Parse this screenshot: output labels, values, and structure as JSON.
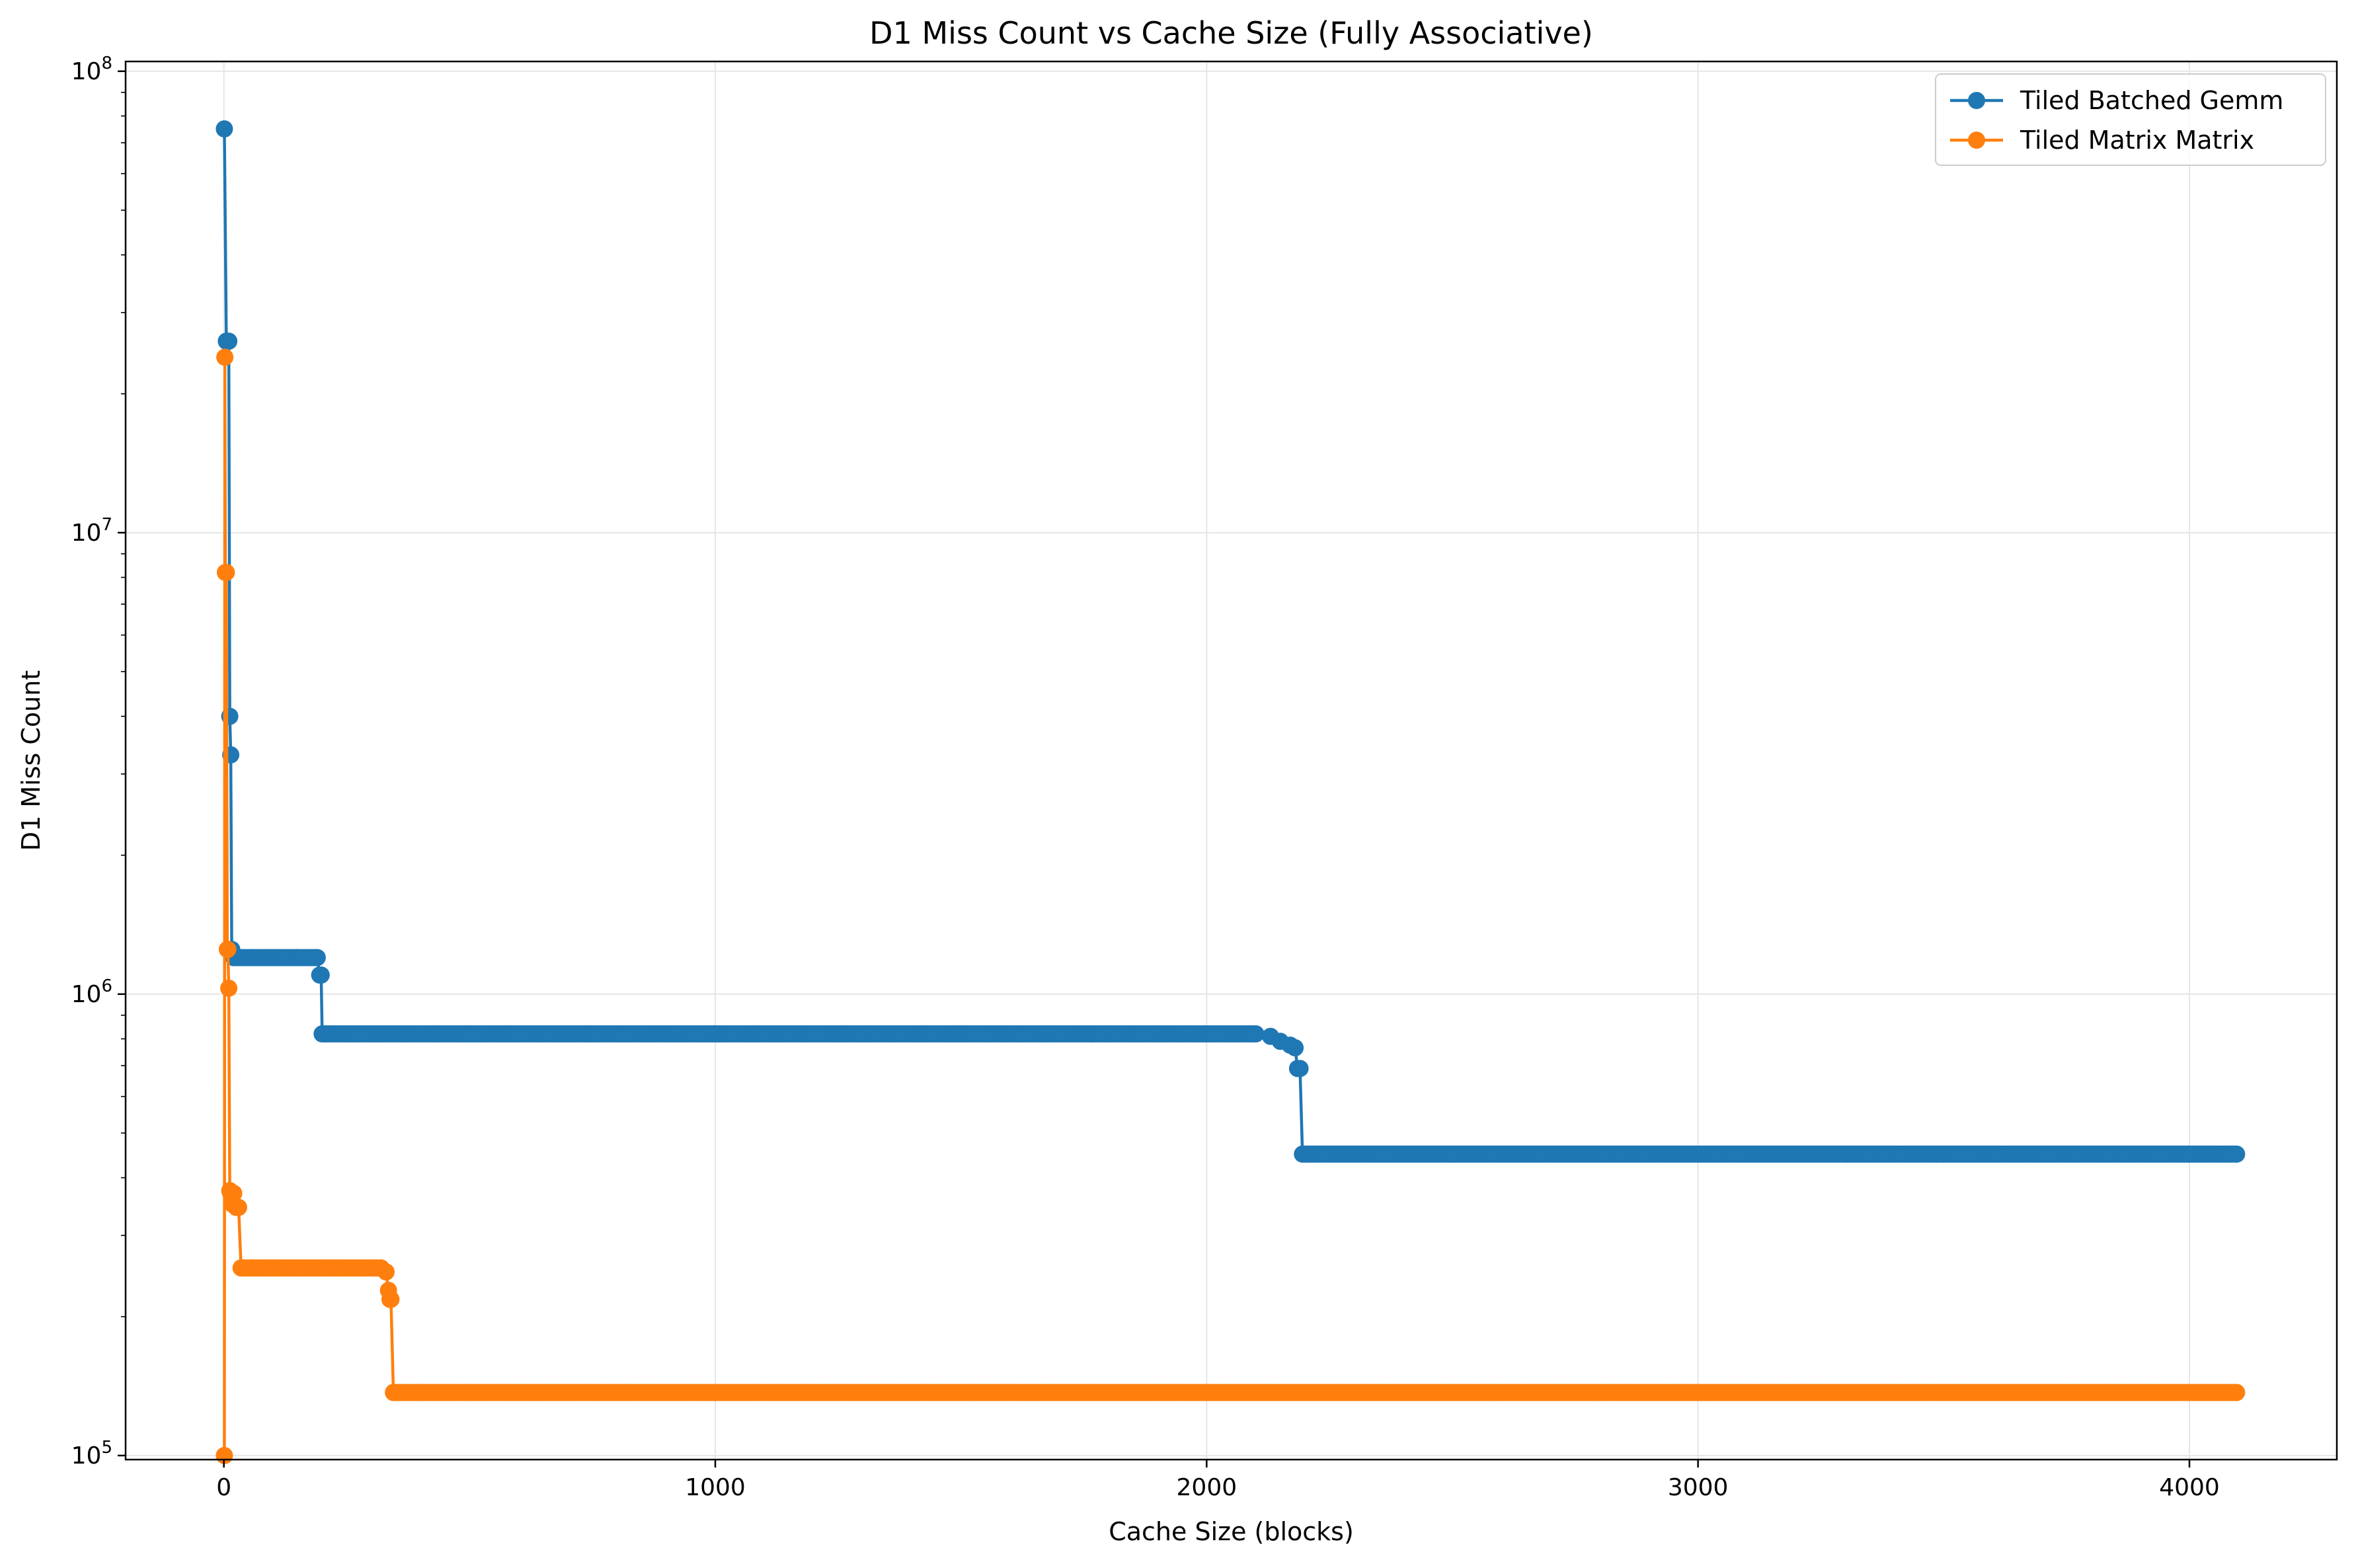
{
  "chart_data": {
    "type": "line",
    "title": "D1 Miss Count vs Cache Size (Fully Associative)",
    "xlabel": "Cache Size (blocks)",
    "ylabel": "D1 Miss Count",
    "xlim": [
      -200,
      4300
    ],
    "ylim": [
      98000,
      105000000
    ],
    "yscale": "log",
    "x_ticks": [
      0,
      1000,
      2000,
      3000,
      4000
    ],
    "x_tick_labels": [
      "0",
      "1000",
      "2000",
      "3000",
      "4000"
    ],
    "y_ticks": [
      100000,
      1000000,
      10000000,
      100000000
    ],
    "y_tick_labels": [
      {
        "base": "10",
        "exp": "5"
      },
      {
        "base": "10",
        "exp": "6"
      },
      {
        "base": "10",
        "exp": "7"
      },
      {
        "base": "10",
        "exp": "8"
      }
    ],
    "grid": true,
    "legend": "top-right",
    "series": [
      {
        "name": "Tiled Batched Gemm",
        "color": "#1f77b4",
        "x": [
          1,
          5,
          10,
          12,
          14,
          16,
          20,
          30,
          40,
          60,
          100,
          150,
          185,
          190,
          195,
          198,
          200,
          205,
          210,
          300,
          500,
          1000,
          1500,
          2000,
          2100,
          2130,
          2150,
          2170,
          2180,
          2185,
          2190,
          2195,
          2200,
          2300,
          2500,
          3000,
          3500,
          4000,
          4096
        ],
        "y": [
          75000000,
          26000000,
          26000000,
          4000000,
          3300000,
          1250000,
          1200000,
          1200000,
          1200000,
          1200000,
          1200000,
          1200000,
          1200000,
          1200000,
          1100000,
          1100000,
          820000,
          820000,
          820000,
          820000,
          820000,
          820000,
          820000,
          820000,
          820000,
          810000,
          790000,
          775000,
          765000,
          690000,
          690000,
          450000,
          450000,
          450000,
          450000,
          450000,
          450000,
          450000,
          450000
        ]
      },
      {
        "name": "Tiled Matrix Matrix",
        "color": "#ff7f0e",
        "x": [
          1,
          2,
          3,
          5,
          7,
          8,
          10,
          12,
          14,
          16,
          18,
          20,
          25,
          30,
          35,
          40,
          60,
          100,
          200,
          300,
          320,
          330,
          335,
          338,
          340,
          345,
          350,
          400,
          500,
          1000,
          2000,
          3000,
          4000,
          4096
        ],
        "y": [
          100000,
          24000000,
          8200000,
          8200000,
          1250000,
          1250000,
          1030000,
          375000,
          370000,
          360000,
          350000,
          370000,
          345000,
          345000,
          255000,
          255000,
          255000,
          255000,
          255000,
          255000,
          255000,
          250000,
          228000,
          218000,
          218000,
          137000,
          137000,
          137000,
          137000,
          137000,
          137000,
          137000,
          137000,
          137000
        ]
      }
    ]
  }
}
